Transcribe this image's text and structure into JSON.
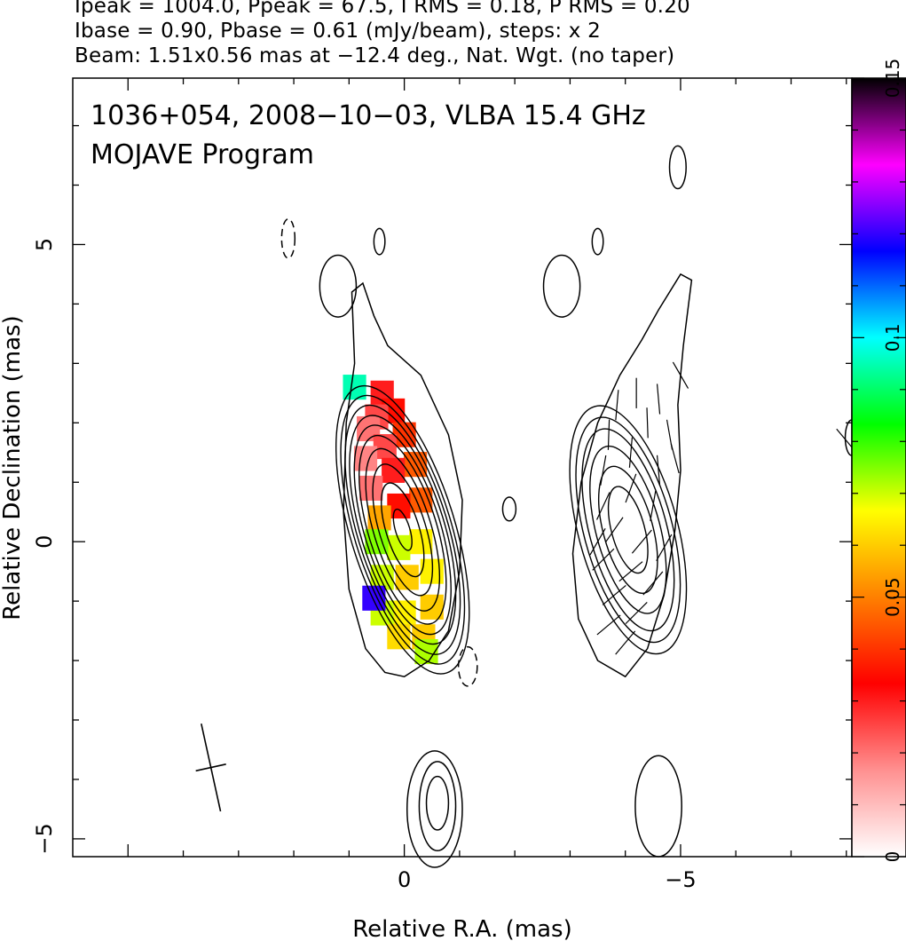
{
  "header": {
    "line1": "Ipeak = 1004.0, Ppeak = 67.5, I RMS = 0.18, P RMS = 0.20",
    "line2": "Ibase = 0.90, Pbase = 0.61 (mJy/beam), steps: x 2",
    "line3": "Beam: 1.51x0.56 mas at −12.4 deg., Nat. Wgt. (no taper)"
  },
  "chart_data": {
    "type": "heatmap",
    "title_line1": "1036+054, 2008−10−03, VLBA 15.4 GHz",
    "title_line2": "MOJAVE Program",
    "xlabel": "Relative R.A. (mas)",
    "ylabel": "Relative Declination (mas)",
    "xlim": [
      6,
      -8.1
    ],
    "ylim": [
      -5.3,
      7.8
    ],
    "x_ticks": [
      0,
      -5
    ],
    "x_tick_labels": [
      "0",
      "−5"
    ],
    "y_ticks": [
      5,
      0,
      -5
    ],
    "y_tick_labels": [
      "5",
      "0",
      "−5"
    ],
    "colorbar": {
      "min": 0,
      "max": 0.15,
      "ticks": [
        0,
        0.05,
        0.1,
        0.15
      ],
      "tick_labels": [
        "0",
        "0.05",
        "0.1",
        "0.15"
      ],
      "colors": [
        "#ffffff",
        "#ff9090",
        "#ff0000",
        "#ff8000",
        "#ffff00",
        "#00ff00",
        "#00ffff",
        "#0000ff",
        "#ff00ff",
        "#000000"
      ]
    },
    "beam": {
      "major_mas": 1.51,
      "minor_mas": 0.56,
      "pa_deg": -12.4,
      "center": [
        3.5,
        -3.8
      ]
    },
    "intensity_panel": {
      "core": [
        0.03,
        0.2
      ],
      "contour_levels_mjy": [
        0.9,
        1.8,
        3.6,
        7.2,
        14.4,
        28.8,
        57.6,
        115.2,
        230.4,
        460.8,
        921.6
      ],
      "contour_radii_mas": [
        [
          1.02,
          2.72
        ],
        [
          0.95,
          2.52
        ],
        [
          0.88,
          2.35
        ],
        [
          0.82,
          2.18
        ],
        [
          0.76,
          2.0
        ],
        [
          0.69,
          1.83
        ],
        [
          0.62,
          1.65
        ],
        [
          0.52,
          1.42
        ],
        [
          0.42,
          1.15
        ],
        [
          0.3,
          0.82
        ],
        [
          0.13,
          0.36
        ]
      ],
      "contour_pa_deg": -17,
      "outer_contour_path_mas": [
        [
          0.0,
          -2.27
        ],
        [
          -0.45,
          -2.0
        ],
        [
          -0.8,
          -1.5
        ],
        [
          -1.0,
          -0.5
        ],
        [
          -1.05,
          0.7
        ],
        [
          -0.8,
          1.8
        ],
        [
          -0.3,
          2.8
        ],
        [
          0.3,
          3.3
        ],
        [
          0.55,
          3.8
        ],
        [
          0.75,
          4.35
        ],
        [
          0.95,
          4.2
        ],
        [
          0.9,
          3.0
        ],
        [
          1.05,
          2.0
        ],
        [
          1.1,
          0.5
        ],
        [
          1.0,
          -0.8
        ],
        [
          0.7,
          -1.8
        ],
        [
          0.35,
          -2.2
        ]
      ],
      "fractional_polarization_pixels": [
        {
          "x": 0.4,
          "y": 2.5,
          "v": 0.03
        },
        {
          "x": 0.2,
          "y": 2.2,
          "v": 0.035
        },
        {
          "x": 0.5,
          "y": 2.1,
          "v": 0.025
        },
        {
          "x": 0.65,
          "y": 1.9,
          "v": 0.02
        },
        {
          "x": 0.0,
          "y": 1.8,
          "v": 0.04
        },
        {
          "x": 0.35,
          "y": 1.6,
          "v": 0.025
        },
        {
          "x": 0.7,
          "y": 1.4,
          "v": 0.018
        },
        {
          "x": -0.2,
          "y": 1.3,
          "v": 0.045
        },
        {
          "x": 0.2,
          "y": 1.2,
          "v": 0.03
        },
        {
          "x": 0.6,
          "y": 0.9,
          "v": 0.02
        },
        {
          "x": -0.3,
          "y": 0.7,
          "v": 0.045
        },
        {
          "x": 0.1,
          "y": 0.6,
          "v": 0.035
        },
        {
          "x": 0.45,
          "y": 0.4,
          "v": 0.055
        },
        {
          "x": -0.3,
          "y": 0.0,
          "v": 0.065
        },
        {
          "x": 0.1,
          "y": -0.1,
          "v": 0.07
        },
        {
          "x": 0.5,
          "y": 0.0,
          "v": 0.075
        },
        {
          "x": -0.5,
          "y": -0.5,
          "v": 0.065
        },
        {
          "x": -0.05,
          "y": -0.6,
          "v": 0.06
        },
        {
          "x": 0.4,
          "y": -0.6,
          "v": 0.07
        },
        {
          "x": -0.5,
          "y": -1.1,
          "v": 0.06
        },
        {
          "x": 0.0,
          "y": -1.2,
          "v": 0.065
        },
        {
          "x": 0.4,
          "y": -1.2,
          "v": 0.07
        },
        {
          "x": -0.35,
          "y": -1.6,
          "v": 0.06
        },
        {
          "x": 0.1,
          "y": -1.6,
          "v": 0.062
        },
        {
          "x": -0.4,
          "y": -1.85,
          "v": 0.072
        },
        {
          "x": 0.55,
          "y": -0.95,
          "v": 0.12
        },
        {
          "x": 0.9,
          "y": 2.6,
          "v": 0.095
        }
      ]
    },
    "polarization_panel": {
      "core": [
        -4.05,
        0.2
      ],
      "contour_levels_mjy": [
        0.61,
        1.22,
        2.44,
        4.88,
        9.76,
        19.52,
        39.04
      ],
      "contour_radii_mas": [
        [
          1.05,
          2.4
        ],
        [
          0.9,
          2.15
        ],
        [
          0.8,
          1.95
        ],
        [
          0.7,
          1.75
        ],
        [
          0.58,
          1.45
        ],
        [
          0.45,
          1.1
        ],
        [
          0.3,
          0.75
        ]
      ],
      "contour_pa_deg": -15,
      "outer_contour_path_mas": [
        [
          -4.0,
          -2.27
        ],
        [
          -3.5,
          -2.0
        ],
        [
          -3.15,
          -1.3
        ],
        [
          -3.05,
          -0.2
        ],
        [
          -3.2,
          1.0
        ],
        [
          -3.5,
          2.0
        ],
        [
          -3.9,
          2.8
        ],
        [
          -4.3,
          3.4
        ],
        [
          -4.6,
          3.9
        ],
        [
          -5.0,
          4.5
        ],
        [
          -5.2,
          4.4
        ],
        [
          -5.05,
          3.3
        ],
        [
          -4.95,
          2.3
        ],
        [
          -5.0,
          1.2
        ],
        [
          -4.9,
          0.2
        ],
        [
          -4.7,
          -0.9
        ],
        [
          -4.4,
          -1.8
        ]
      ],
      "evpa_vectors_deg": [
        {
          "x": -4.2,
          "y": 2.5,
          "a": 90
        },
        {
          "x": -4.6,
          "y": 2.4,
          "a": 85
        },
        {
          "x": -3.85,
          "y": 2.3,
          "a": 95
        },
        {
          "x": -4.4,
          "y": 2.0,
          "a": 88
        },
        {
          "x": -3.7,
          "y": 1.8,
          "a": 92
        },
        {
          "x": -4.8,
          "y": 1.8,
          "a": 80
        },
        {
          "x": -4.1,
          "y": 1.5,
          "a": 95
        },
        {
          "x": -3.6,
          "y": 1.2,
          "a": 100
        },
        {
          "x": -4.6,
          "y": 1.2,
          "a": 85
        },
        {
          "x": -4.1,
          "y": 0.9,
          "a": 110
        },
        {
          "x": -3.6,
          "y": 0.6,
          "a": 115
        },
        {
          "x": -4.5,
          "y": 0.6,
          "a": 100
        },
        {
          "x": -3.8,
          "y": 0.2,
          "a": 125
        },
        {
          "x": -4.3,
          "y": 0.0,
          "a": 130
        },
        {
          "x": -4.7,
          "y": -0.1,
          "a": 120
        },
        {
          "x": -3.6,
          "y": -0.3,
          "a": 135
        },
        {
          "x": -4.1,
          "y": -0.5,
          "a": 140
        },
        {
          "x": -4.5,
          "y": -0.7,
          "a": 130
        },
        {
          "x": -3.8,
          "y": -0.9,
          "a": 140
        },
        {
          "x": -4.2,
          "y": -1.2,
          "a": 135
        },
        {
          "x": -3.7,
          "y": -1.4,
          "a": 140
        },
        {
          "x": -4.0,
          "y": -1.7,
          "a": 130
        },
        {
          "x": -3.5,
          "y": 0.0,
          "a": 120
        },
        {
          "x": -4.9,
          "y": 1.4,
          "a": 75
        },
        {
          "x": -5.0,
          "y": 2.8,
          "a": 60
        },
        {
          "x": -8.0,
          "y": 1.7,
          "a": 50
        }
      ]
    },
    "artifact_contours": [
      {
        "x": 2.1,
        "y": 5.1,
        "rx": 0.12,
        "ry": 0.33,
        "dashed": true
      },
      {
        "x": 0.45,
        "y": 5.05,
        "rx": 0.1,
        "ry": 0.22,
        "dashed": false
      },
      {
        "x": 1.2,
        "y": 4.3,
        "rx": 0.33,
        "ry": 0.52,
        "dashed": false
      },
      {
        "x": -1.9,
        "y": 0.55,
        "rx": 0.12,
        "ry": 0.2,
        "dashed": false
      },
      {
        "x": -1.15,
        "y": -2.1,
        "rx": 0.17,
        "ry": 0.33,
        "dashed": true
      },
      {
        "x": -2.85,
        "y": 4.3,
        "rx": 0.33,
        "ry": 0.52,
        "dashed": false
      },
      {
        "x": -3.5,
        "y": 5.05,
        "rx": 0.1,
        "ry": 0.22,
        "dashed": false
      },
      {
        "x": -4.95,
        "y": 6.3,
        "rx": 0.15,
        "ry": 0.36,
        "dashed": false
      },
      {
        "x": -0.55,
        "y": -4.5,
        "rx": 0.5,
        "ry": 0.98,
        "dashed": false
      },
      {
        "x": -0.6,
        "y": -4.45,
        "rx": 0.33,
        "ry": 0.75,
        "dashed": false
      },
      {
        "x": -0.6,
        "y": -4.4,
        "rx": 0.2,
        "ry": 0.45,
        "dashed": false
      },
      {
        "x": -4.6,
        "y": -4.45,
        "rx": 0.42,
        "ry": 0.85,
        "dashed": false
      },
      {
        "x": -8.1,
        "y": 1.75,
        "rx": 0.12,
        "ry": 0.3,
        "dashed": false
      }
    ]
  }
}
